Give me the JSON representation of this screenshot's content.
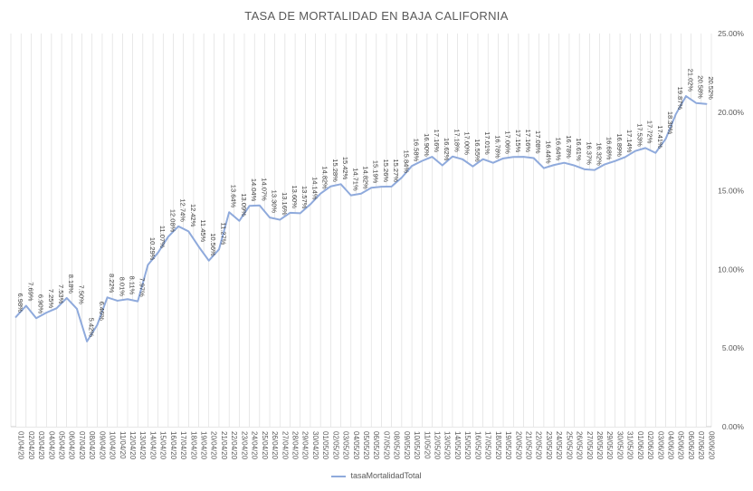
{
  "chart_data": {
    "type": "line",
    "title": "TASA DE MORTALIDAD EN BAJA CALIFORNIA",
    "xlabel": "",
    "ylabel": "",
    "ylim": [
      0,
      25
    ],
    "yticks": [
      "0.00%",
      "5.00%",
      "10.00%",
      "15.00%",
      "20.00%",
      "25.00%"
    ],
    "grid": "vertical",
    "legend_position": "bottom",
    "colors": {
      "line": "#8faadc",
      "grid": "#d9d9d9",
      "text": "#595959"
    },
    "categories": [
      "01/04/20",
      "02/04/20",
      "03/04/20",
      "04/04/20",
      "05/04/20",
      "06/04/20",
      "07/04/20",
      "08/04/20",
      "09/04/20",
      "10/04/20",
      "11/04/20",
      "12/04/20",
      "13/04/20",
      "14/04/20",
      "15/04/20",
      "16/04/20",
      "17/04/20",
      "18/04/20",
      "19/04/20",
      "20/04/20",
      "21/04/20",
      "22/04/20",
      "23/04/20",
      "24/04/20",
      "25/04/20",
      "26/04/20",
      "27/04/20",
      "28/04/20",
      "29/04/20",
      "30/04/20",
      "01/05/20",
      "02/05/20",
      "03/05/20",
      "04/05/20",
      "05/05/20",
      "06/05/20",
      "07/05/20",
      "08/05/20",
      "09/05/20",
      "10/05/20",
      "11/05/20",
      "12/05/20",
      "13/05/20",
      "14/05/20",
      "15/05/20",
      "16/05/20",
      "17/05/20",
      "18/05/20",
      "19/05/20",
      "20/05/20",
      "21/05/20",
      "22/05/20",
      "23/05/20",
      "24/05/20",
      "25/05/20",
      "26/05/20",
      "27/05/20",
      "28/05/20",
      "29/05/20",
      "30/05/20",
      "31/05/20",
      "01/06/20",
      "02/06/20",
      "03/06/20",
      "04/06/20",
      "05/06/20",
      "06/06/20",
      "07/06/20",
      "08/06/20"
    ],
    "series": [
      {
        "name": "tasaMortalidadTotal",
        "values": [
          6.98,
          7.69,
          6.9,
          7.25,
          7.53,
          8.18,
          7.5,
          5.42,
          6.46,
          8.22,
          8.01,
          8.11,
          7.97,
          10.29,
          11.07,
          12.08,
          12.74,
          12.42,
          11.45,
          10.56,
          11.27,
          13.64,
          13.09,
          14.04,
          14.07,
          13.3,
          13.16,
          13.6,
          13.57,
          14.14,
          14.82,
          15.28,
          15.42,
          14.71,
          14.82,
          15.19,
          15.26,
          15.27,
          15.84,
          16.58,
          16.9,
          17.16,
          16.62,
          17.18,
          17.0,
          16.55,
          17.01,
          16.78,
          17.06,
          17.15,
          17.16,
          17.08,
          16.44,
          16.64,
          16.78,
          16.61,
          16.37,
          16.32,
          16.68,
          16.89,
          17.14,
          17.53,
          17.72,
          17.41,
          18.3,
          19.87,
          21.02,
          20.58,
          20.52
        ],
        "labels": [
          "6.98%",
          "7.69%",
          "6.90%",
          "7.25%",
          "7.53%",
          "8.18%",
          "7.50%",
          "5.42%",
          "6.46%",
          "8.22%",
          "8.01%",
          "8.11%",
          "7.97%",
          "10.29%",
          "11.07%",
          "12.08%",
          "12.74%",
          "12.42%",
          "11.45%",
          "10.56%",
          "11.27%",
          "13.64%",
          "13.09%",
          "14.04%",
          "14.07%",
          "13.30%",
          "13.16%",
          "13.60%",
          "13.57%",
          "14.14%",
          "14.82%",
          "15.28%",
          "15.42%",
          "14.71%",
          "14.82%",
          "15.19%",
          "15.26%",
          "15.27%",
          "15.84%",
          "16.58%",
          "16.90%",
          "17.16%",
          "16.62%",
          "17.18%",
          "17.00%",
          "16.55%",
          "17.01%",
          "16.78%",
          "17.06%",
          "17.15%",
          "17.16%",
          "17.08%",
          "16.44%",
          "16.64%",
          "16.78%",
          "16.61%",
          "16.37%",
          "16.32%",
          "16.68%",
          "16.89%",
          "17.14%",
          "17.53%",
          "17.72%",
          "17.41%",
          "18.30%",
          "19.87%",
          "21.02%",
          "20.58%",
          "20.52%"
        ]
      }
    ]
  }
}
